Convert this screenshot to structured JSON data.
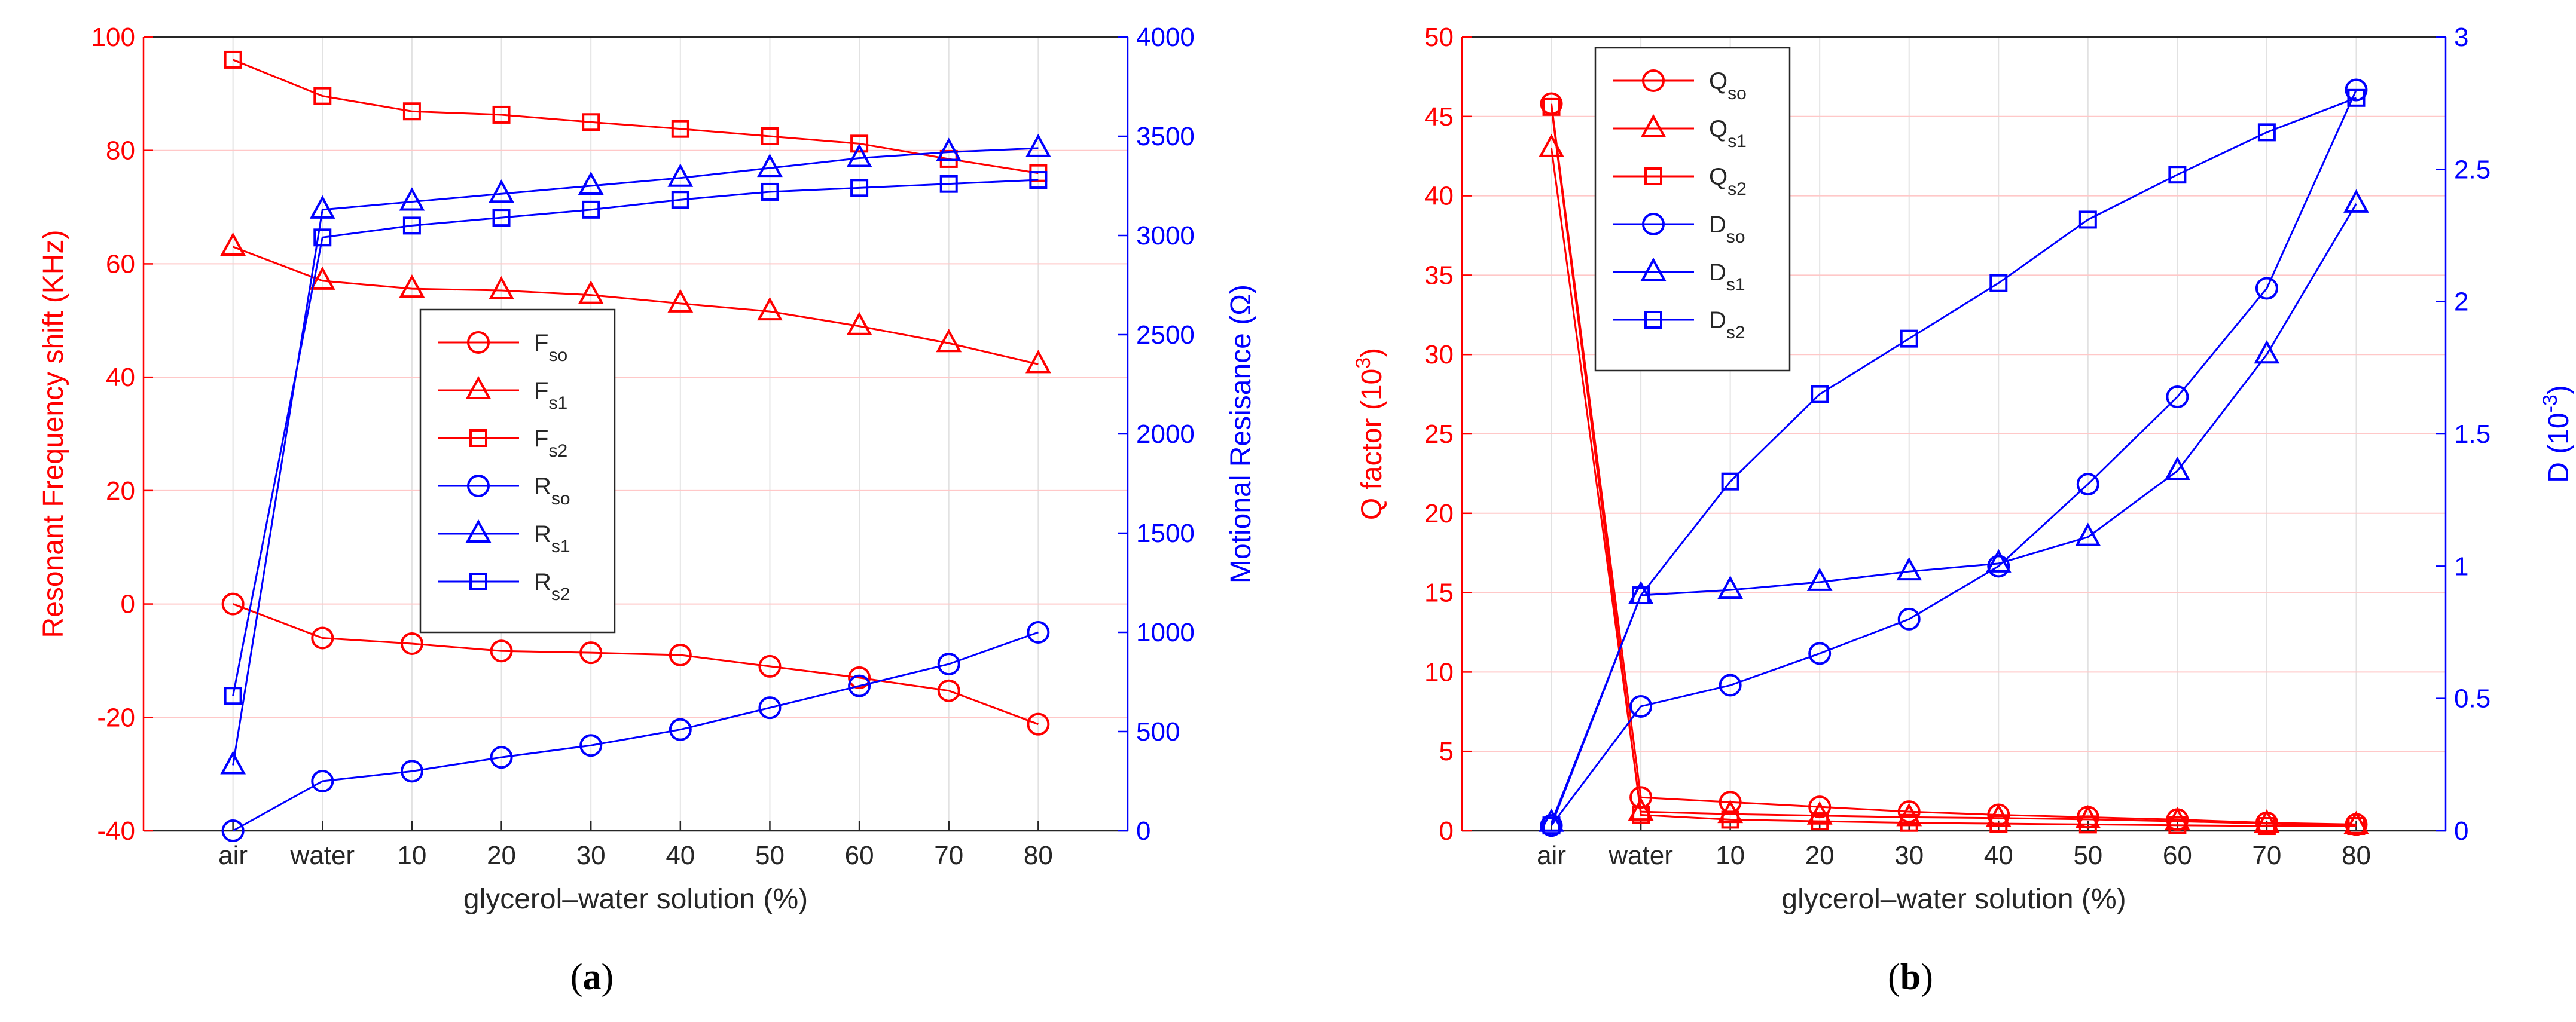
{
  "colors": {
    "red": "#ff0000",
    "blue": "#0000ff",
    "grid_red": "#ffc8c8",
    "grid_gray": "#e2e2e2",
    "axis": "#262626"
  },
  "chart_data": [
    {
      "panel": "a",
      "caption_letter": "a",
      "type": "line",
      "xlabel": "glycerol–water solution (%)",
      "categories": [
        "air",
        "water",
        "10",
        "20",
        "30",
        "40",
        "50",
        "60",
        "70",
        "80"
      ],
      "y_left": {
        "label": "Resonant Frequency shift (KHz)",
        "lim": [
          -40,
          100
        ],
        "ticks": [
          "-40",
          "-20",
          "0",
          "20",
          "40",
          "60",
          "80",
          "100"
        ]
      },
      "y_right": {
        "label": "Motional Resisance (Ω)",
        "lim": [
          0,
          4000
        ],
        "ticks": [
          "0",
          "500",
          "1000",
          "1500",
          "2000",
          "2500",
          "3000",
          "3500",
          "4000"
        ]
      },
      "series": [
        {
          "name": "F",
          "sub": "so",
          "axis": "left",
          "color": "red",
          "marker": "circle",
          "values": [
            0,
            -6,
            -7,
            -8.3,
            -8.6,
            -9,
            -11,
            -13,
            -15.3,
            -21.2
          ]
        },
        {
          "name": "F",
          "sub": "s1",
          "axis": "left",
          "color": "red",
          "marker": "triangle",
          "values": [
            63,
            57,
            55.6,
            55.3,
            54.5,
            53,
            51.6,
            49,
            46,
            42.3
          ]
        },
        {
          "name": "F",
          "sub": "s2",
          "axis": "left",
          "color": "red",
          "marker": "square",
          "values": [
            96,
            89.6,
            86.9,
            86.3,
            85,
            83.8,
            82.5,
            81.2,
            78.5,
            76
          ]
        },
        {
          "name": "R",
          "sub": "so",
          "axis": "right",
          "color": "blue",
          "marker": "circle",
          "values": [
            0,
            250,
            300,
            370,
            430,
            510,
            620,
            730,
            840,
            1000
          ]
        },
        {
          "name": "R",
          "sub": "s1",
          "axis": "right",
          "color": "blue",
          "marker": "triangle",
          "values": [
            330,
            3130,
            3170,
            3210,
            3250,
            3290,
            3340,
            3390,
            3420,
            3440
          ]
        },
        {
          "name": "R",
          "sub": "s2",
          "axis": "right",
          "color": "blue",
          "marker": "square",
          "values": [
            680,
            2990,
            3050,
            3090,
            3130,
            3180,
            3220,
            3240,
            3260,
            3280
          ]
        }
      ],
      "legend_position": "center"
    },
    {
      "panel": "b",
      "caption_letter": "b",
      "type": "line",
      "xlabel": "glycerol–water solution (%)",
      "categories": [
        "air",
        "water",
        "10",
        "20",
        "30",
        "40",
        "50",
        "60",
        "70",
        "80"
      ],
      "y_left": {
        "label": "Q factor (10",
        "label_sup": "3",
        "label_end": ")",
        "lim": [
          0,
          50
        ],
        "ticks": [
          "0",
          "5",
          "10",
          "15",
          "20",
          "25",
          "30",
          "35",
          "40",
          "45",
          "50"
        ]
      },
      "y_right": {
        "label": "D (10",
        "label_sup": "-3",
        "label_end": ")",
        "lim": [
          0,
          3
        ],
        "ticks": [
          "0",
          "0.5",
          "1",
          "1.5",
          "2",
          "2.5",
          "3"
        ]
      },
      "series": [
        {
          "name": "Q",
          "sub": "so",
          "axis": "left",
          "color": "red",
          "marker": "circle",
          "values": [
            45.8,
            2.1,
            1.8,
            1.5,
            1.2,
            1.0,
            0.85,
            0.7,
            0.5,
            0.4
          ]
        },
        {
          "name": "Q",
          "sub": "s1",
          "axis": "left",
          "color": "red",
          "marker": "triangle",
          "values": [
            43,
            1.2,
            1.05,
            0.95,
            0.85,
            0.8,
            0.72,
            0.6,
            0.45,
            0.35
          ]
        },
        {
          "name": "Q",
          "sub": "s2",
          "axis": "left",
          "color": "red",
          "marker": "square",
          "values": [
            45.6,
            1.0,
            0.7,
            0.6,
            0.5,
            0.45,
            0.4,
            0.35,
            0.3,
            0.3
          ]
        },
        {
          "name": "D",
          "sub": "so",
          "axis": "right",
          "color": "blue",
          "marker": "circle",
          "values": [
            0.02,
            0.47,
            0.55,
            0.67,
            0.8,
            1.0,
            1.31,
            1.64,
            2.05,
            2.8
          ]
        },
        {
          "name": "D",
          "sub": "s1",
          "axis": "right",
          "color": "blue",
          "marker": "triangle",
          "values": [
            0.03,
            0.89,
            0.91,
            0.94,
            0.98,
            1.01,
            1.11,
            1.36,
            1.8,
            2.37
          ]
        },
        {
          "name": "D",
          "sub": "s2",
          "axis": "right",
          "color": "blue",
          "marker": "square",
          "values": [
            0.02,
            0.89,
            1.32,
            1.65,
            1.86,
            2.07,
            2.31,
            2.48,
            2.64,
            2.77
          ]
        }
      ],
      "legend_position": "top-left"
    }
  ]
}
